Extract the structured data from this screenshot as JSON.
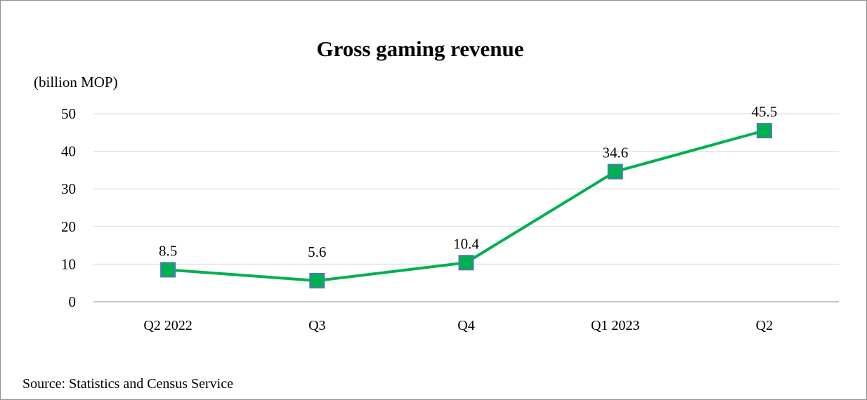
{
  "chart_data": {
    "type": "line",
    "title": "Gross gaming revenue",
    "ylabel": "(billion MOP)",
    "xlabel": "",
    "categories": [
      "Q2 2022",
      "Q3",
      "Q4",
      "Q1 2023",
      "Q2"
    ],
    "series": [
      {
        "values": [
          8.5,
          5.6,
          10.4,
          34.6,
          45.5
        ]
      }
    ],
    "data_labels": [
      "8.5",
      "5.6",
      "10.4",
      "34.6",
      "45.5"
    ],
    "yticks": [
      "0",
      "10",
      "20",
      "30",
      "40",
      "50"
    ],
    "ylim": [
      0,
      50
    ],
    "grid": true,
    "legend": "none",
    "colors": {
      "line": "#00b050",
      "marker_fill": "#00b050",
      "marker_edge": "#4a7ab7",
      "grid": "#d9d9d9",
      "axis": "#8c8c8c"
    }
  },
  "footer": {
    "source": "Source: Statistics and Census Service"
  }
}
